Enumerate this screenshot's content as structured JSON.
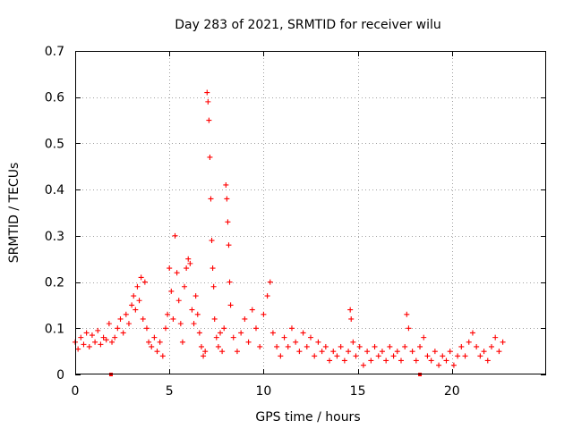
{
  "chart_data": {
    "type": "scatter",
    "title": "Day 283 of 2021, SRMTID for receiver wilu",
    "xlabel": "GPS time / hours",
    "ylabel": "SRMTID / TECUs",
    "xlim": [
      0,
      25
    ],
    "ylim": [
      0,
      0.7
    ],
    "xticks": [
      0,
      5,
      10,
      15,
      20
    ],
    "xtick_labels": [
      "0",
      "5",
      "10",
      "15",
      "20"
    ],
    "yticks": [
      0,
      0.1,
      0.2,
      0.3,
      0.4,
      0.5,
      0.6,
      0.7
    ],
    "ytick_labels": [
      "0",
      "0.1",
      "0.2",
      "0.3",
      "0.4",
      "0.5",
      "0.6",
      "0.7"
    ],
    "grid": true,
    "marker": "+",
    "color": "#ff0000",
    "series": [
      {
        "name": "SRMTID",
        "points": [
          [
            0.0,
            0.07
          ],
          [
            0.15,
            0.055
          ],
          [
            0.3,
            0.08
          ],
          [
            0.45,
            0.065
          ],
          [
            0.6,
            0.09
          ],
          [
            0.75,
            0.06
          ],
          [
            0.9,
            0.085
          ],
          [
            1.05,
            0.07
          ],
          [
            1.2,
            0.095
          ],
          [
            1.35,
            0.065
          ],
          [
            1.5,
            0.08
          ],
          [
            1.65,
            0.075
          ],
          [
            1.8,
            0.11
          ],
          [
            1.95,
            0.07
          ],
          [
            2.1,
            0.08
          ],
          [
            2.25,
            0.1
          ],
          [
            2.4,
            0.12
          ],
          [
            2.55,
            0.09
          ],
          [
            2.7,
            0.13
          ],
          [
            2.85,
            0.11
          ],
          [
            3.0,
            0.15
          ],
          [
            3.1,
            0.17
          ],
          [
            3.2,
            0.14
          ],
          [
            3.3,
            0.19
          ],
          [
            3.4,
            0.16
          ],
          [
            3.5,
            0.21
          ],
          [
            3.6,
            0.12
          ],
          [
            3.7,
            0.2
          ],
          [
            3.8,
            0.1
          ],
          [
            3.9,
            0.07
          ],
          [
            4.05,
            0.06
          ],
          [
            4.2,
            0.08
          ],
          [
            4.35,
            0.05
          ],
          [
            4.5,
            0.07
          ],
          [
            4.65,
            0.04
          ],
          [
            4.8,
            0.1
          ],
          [
            4.9,
            0.13
          ],
          [
            5.0,
            0.23
          ],
          [
            5.1,
            0.18
          ],
          [
            5.2,
            0.12
          ],
          [
            5.3,
            0.3
          ],
          [
            5.4,
            0.22
          ],
          [
            5.5,
            0.16
          ],
          [
            5.6,
            0.11
          ],
          [
            5.7,
            0.07
          ],
          [
            5.8,
            0.19
          ],
          [
            5.9,
            0.23
          ],
          [
            6.0,
            0.25
          ],
          [
            6.1,
            0.24
          ],
          [
            6.2,
            0.14
          ],
          [
            6.3,
            0.11
          ],
          [
            6.4,
            0.17
          ],
          [
            6.5,
            0.13
          ],
          [
            6.6,
            0.09
          ],
          [
            6.7,
            0.06
          ],
          [
            6.8,
            0.04
          ],
          [
            6.9,
            0.05
          ],
          [
            7.0,
            0.61
          ],
          [
            7.05,
            0.59
          ],
          [
            7.1,
            0.55
          ],
          [
            7.15,
            0.47
          ],
          [
            7.2,
            0.38
          ],
          [
            7.25,
            0.29
          ],
          [
            7.3,
            0.23
          ],
          [
            7.35,
            0.19
          ],
          [
            7.4,
            0.12
          ],
          [
            7.5,
            0.08
          ],
          [
            7.6,
            0.06
          ],
          [
            7.7,
            0.09
          ],
          [
            7.8,
            0.05
          ],
          [
            7.9,
            0.1
          ],
          [
            8.0,
            0.41
          ],
          [
            8.05,
            0.38
          ],
          [
            8.1,
            0.33
          ],
          [
            8.15,
            0.28
          ],
          [
            8.2,
            0.2
          ],
          [
            8.25,
            0.15
          ],
          [
            8.4,
            0.08
          ],
          [
            8.6,
            0.05
          ],
          [
            8.8,
            0.09
          ],
          [
            9.0,
            0.12
          ],
          [
            9.2,
            0.07
          ],
          [
            9.4,
            0.14
          ],
          [
            9.6,
            0.1
          ],
          [
            9.8,
            0.06
          ],
          [
            10.0,
            0.13
          ],
          [
            10.2,
            0.17
          ],
          [
            10.35,
            0.2
          ],
          [
            10.5,
            0.09
          ],
          [
            10.7,
            0.06
          ],
          [
            10.9,
            0.04
          ],
          [
            11.1,
            0.08
          ],
          [
            11.3,
            0.06
          ],
          [
            11.5,
            0.1
          ],
          [
            11.7,
            0.07
          ],
          [
            11.9,
            0.05
          ],
          [
            12.1,
            0.09
          ],
          [
            12.3,
            0.06
          ],
          [
            12.5,
            0.08
          ],
          [
            12.7,
            0.04
          ],
          [
            12.9,
            0.07
          ],
          [
            13.1,
            0.05
          ],
          [
            13.3,
            0.06
          ],
          [
            13.5,
            0.03
          ],
          [
            13.7,
            0.05
          ],
          [
            13.9,
            0.04
          ],
          [
            14.1,
            0.06
          ],
          [
            14.3,
            0.03
          ],
          [
            14.5,
            0.05
          ],
          [
            14.6,
            0.14
          ],
          [
            14.65,
            0.12
          ],
          [
            14.75,
            0.07
          ],
          [
            14.9,
            0.04
          ],
          [
            15.1,
            0.06
          ],
          [
            15.3,
            0.02
          ],
          [
            15.5,
            0.05
          ],
          [
            15.7,
            0.03
          ],
          [
            15.9,
            0.06
          ],
          [
            16.1,
            0.04
          ],
          [
            16.3,
            0.05
          ],
          [
            16.5,
            0.03
          ],
          [
            16.7,
            0.06
          ],
          [
            16.9,
            0.04
          ],
          [
            17.1,
            0.05
          ],
          [
            17.3,
            0.03
          ],
          [
            17.5,
            0.06
          ],
          [
            17.6,
            0.13
          ],
          [
            17.7,
            0.1
          ],
          [
            17.9,
            0.05
          ],
          [
            18.1,
            0.03
          ],
          [
            18.3,
            0.06
          ],
          [
            18.5,
            0.08
          ],
          [
            18.7,
            0.04
          ],
          [
            18.9,
            0.03
          ],
          [
            19.1,
            0.05
          ],
          [
            19.3,
            0.02
          ],
          [
            19.5,
            0.04
          ],
          [
            19.7,
            0.03
          ],
          [
            19.9,
            0.05
          ],
          [
            20.1,
            0.02
          ],
          [
            20.3,
            0.04
          ],
          [
            20.5,
            0.06
          ],
          [
            20.7,
            0.04
          ],
          [
            20.9,
            0.07
          ],
          [
            21.1,
            0.09
          ],
          [
            21.3,
            0.06
          ],
          [
            21.5,
            0.04
          ],
          [
            21.7,
            0.05
          ],
          [
            21.9,
            0.03
          ],
          [
            22.1,
            0.06
          ],
          [
            22.3,
            0.08
          ],
          [
            22.5,
            0.05
          ],
          [
            22.7,
            0.07
          ]
        ]
      }
    ],
    "markers_on_x_axis": [
      1.9,
      18.3
    ]
  }
}
